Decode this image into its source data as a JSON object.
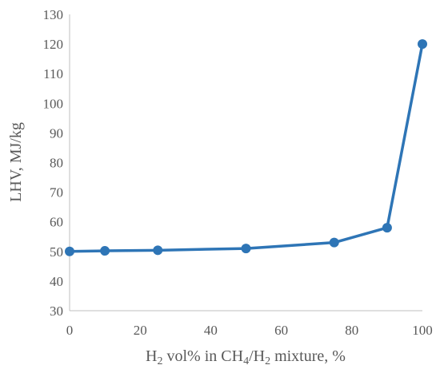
{
  "chart_data": {
    "type": "line",
    "title": "",
    "xlabel": {
      "parts": [
        {
          "text": "H",
          "sub": false
        },
        {
          "text": "2",
          "sub": true
        },
        {
          "text": " vol% in CH",
          "sub": false
        },
        {
          "text": "4",
          "sub": true
        },
        {
          "text": "/H",
          "sub": false
        },
        {
          "text": "2",
          "sub": true
        },
        {
          "text": " mixture, %",
          "sub": false
        }
      ]
    },
    "ylabel": "LHV, MJ/kg",
    "xlim": [
      0,
      100
    ],
    "ylim": [
      30,
      130
    ],
    "xticks": [
      0,
      20,
      40,
      60,
      80,
      100
    ],
    "yticks": [
      30,
      40,
      50,
      60,
      70,
      80,
      90,
      100,
      110,
      120,
      130
    ],
    "grid": false,
    "legend": "none",
    "series": [
      {
        "color": "#2e75b6",
        "points": [
          {
            "x": 0,
            "y": 50
          },
          {
            "x": 10,
            "y": 50.2
          },
          {
            "x": 25,
            "y": 50.4
          },
          {
            "x": 50,
            "y": 51
          },
          {
            "x": 75,
            "y": 53
          },
          {
            "x": 90,
            "y": 58
          },
          {
            "x": 100,
            "y": 120
          }
        ]
      }
    ]
  }
}
